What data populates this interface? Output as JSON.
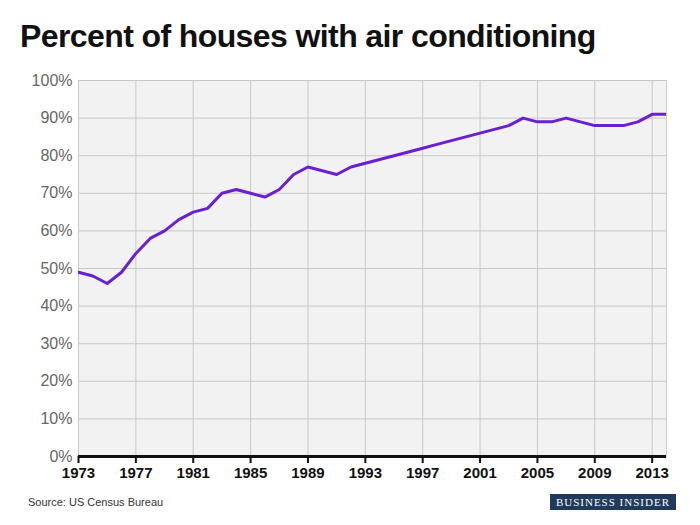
{
  "chart_data": {
    "type": "line",
    "title": "Percent of houses with air conditioning",
    "source": "Source: US Census Bureau",
    "brand": "BUSINESS INSIDER",
    "x": [
      1973,
      1974,
      1975,
      1976,
      1977,
      1978,
      1979,
      1980,
      1981,
      1982,
      1983,
      1984,
      1985,
      1986,
      1987,
      1988,
      1989,
      1990,
      1991,
      1992,
      1993,
      1994,
      1995,
      1996,
      1997,
      1998,
      1999,
      2000,
      2001,
      2002,
      2003,
      2004,
      2005,
      2006,
      2007,
      2008,
      2009,
      2010,
      2011,
      2012,
      2013,
      2014
    ],
    "values": [
      49,
      48,
      46,
      49,
      54,
      58,
      60,
      63,
      65,
      66,
      70,
      71,
      70,
      69,
      71,
      75,
      77,
      76,
      75,
      77,
      78,
      79,
      80,
      81,
      82,
      83,
      84,
      85,
      86,
      87,
      88,
      90,
      89,
      89,
      90,
      89,
      88,
      88,
      88,
      89,
      91,
      91
    ],
    "color": "#6a1fd0",
    "xlim": [
      1973,
      2014
    ],
    "xticks": [
      1973,
      1977,
      1981,
      1985,
      1989,
      1993,
      1997,
      2001,
      2005,
      2009,
      2013
    ],
    "ylim": [
      0,
      100
    ],
    "yticks": [
      {
        "value": 0,
        "label": "0%"
      },
      {
        "value": 10,
        "label": "10%"
      },
      {
        "value": 20,
        "label": "20%"
      },
      {
        "value": 30,
        "label": "30%"
      },
      {
        "value": 40,
        "label": "40%"
      },
      {
        "value": 50,
        "label": "50%"
      },
      {
        "value": 60,
        "label": "60%"
      },
      {
        "value": 70,
        "label": "70%"
      },
      {
        "value": 80,
        "label": "80%"
      },
      {
        "value": 90,
        "label": "90%"
      },
      {
        "value": 100,
        "label": "100%"
      }
    ],
    "grid": true
  }
}
